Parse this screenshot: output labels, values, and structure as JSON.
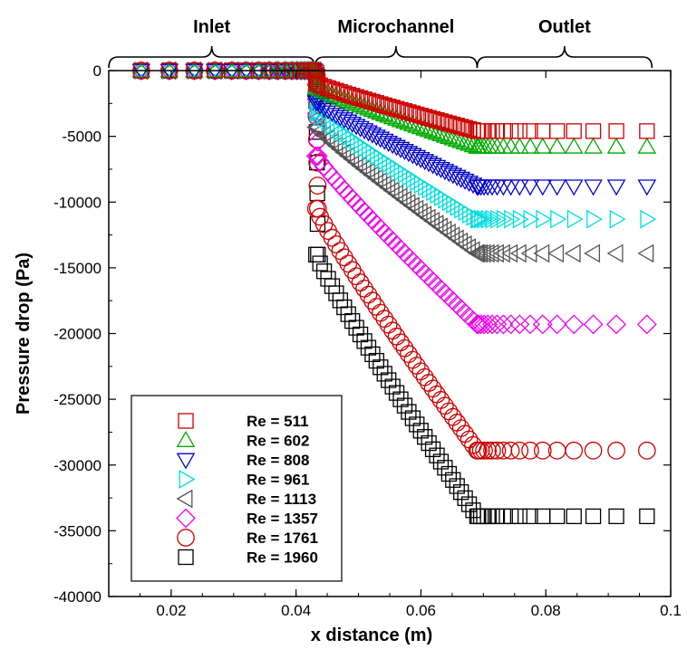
{
  "chart_data": {
    "type": "scatter",
    "title": "",
    "xlabel": "x distance (m)",
    "ylabel": "Pressure drop (Pa)",
    "xlim": [
      0.01,
      0.1
    ],
    "ylim": [
      -40000,
      0
    ],
    "x_ticks": [
      0.02,
      0.04,
      0.06,
      0.08,
      0.1
    ],
    "x_tick_labels": [
      "0.02",
      "0.04",
      "0.06",
      "0.08",
      "0.1"
    ],
    "y_ticks": [
      0,
      -5000,
      -10000,
      -15000,
      -20000,
      -25000,
      -30000,
      -35000,
      -40000
    ],
    "y_tick_labels": [
      "0",
      "-5000",
      "-10000",
      "-15000",
      "-20000",
      "-25000",
      "-30000",
      "-35000",
      "-40000"
    ],
    "grid": false,
    "legend_position": "bottom-left",
    "regions": [
      {
        "label": "Inlet",
        "x_range": [
          0.01,
          0.043
        ]
      },
      {
        "label": "Microchannel",
        "x_range": [
          0.043,
          0.069
        ]
      },
      {
        "label": "Outlet",
        "x_range": [
          0.069,
          0.097
        ]
      }
    ],
    "series": [
      {
        "name": "Re = 511",
        "marker": "square",
        "color": "#cc0000",
        "drop_start": 0,
        "drop_channel": 1000,
        "channel_end": 4600
      },
      {
        "name": "Re = 602",
        "marker": "triangle-up",
        "color": "#00aa00",
        "drop_start": 0,
        "drop_channel": 1300,
        "channel_end": 5800
      },
      {
        "name": "Re = 808",
        "marker": "triangle-down",
        "color": "#0000cc",
        "drop_start": 0,
        "drop_channel": 2400,
        "channel_end": 8800
      },
      {
        "name": "Re = 961",
        "marker": "triangle-right",
        "color": "#00dddd",
        "drop_start": 0,
        "drop_channel": 3200,
        "channel_end": 11300
      },
      {
        "name": "Re = 1113",
        "marker": "triangle-left",
        "color": "#555555",
        "drop_start": 0,
        "drop_channel": 4300,
        "channel_end": 13900
      },
      {
        "name": "Re = 1357",
        "marker": "diamond",
        "color": "#ee00ee",
        "drop_start": 0,
        "drop_channel": 6500,
        "channel_end": 19300
      },
      {
        "name": "Re = 1761",
        "marker": "circle",
        "color": "#cc0000",
        "drop_start": 0,
        "drop_channel": 10500,
        "channel_end": 28900
      },
      {
        "name": "Re = 1960",
        "marker": "square",
        "color": "#000000",
        "drop_start": 0,
        "drop_channel": 14000,
        "channel_end": 33900
      }
    ],
    "inlet_x": [
      0.0152,
      0.0197,
      0.0237,
      0.027,
      0.0297,
      0.032,
      0.034,
      0.0357,
      0.0371,
      0.0383,
      0.0393,
      0.0401,
      0.0408,
      0.0414,
      0.0419,
      0.0423,
      0.0426,
      0.0429
    ],
    "outlet_x": [
      0.0692,
      0.0696,
      0.0701,
      0.0707,
      0.0714,
      0.0722,
      0.0732,
      0.0744,
      0.0758,
      0.0775,
      0.0795,
      0.0818,
      0.0845,
      0.0876,
      0.0913,
      0.0962
    ],
    "channel_x_start": 0.0432,
    "channel_x_end": 0.069,
    "channel_points": 40
  }
}
